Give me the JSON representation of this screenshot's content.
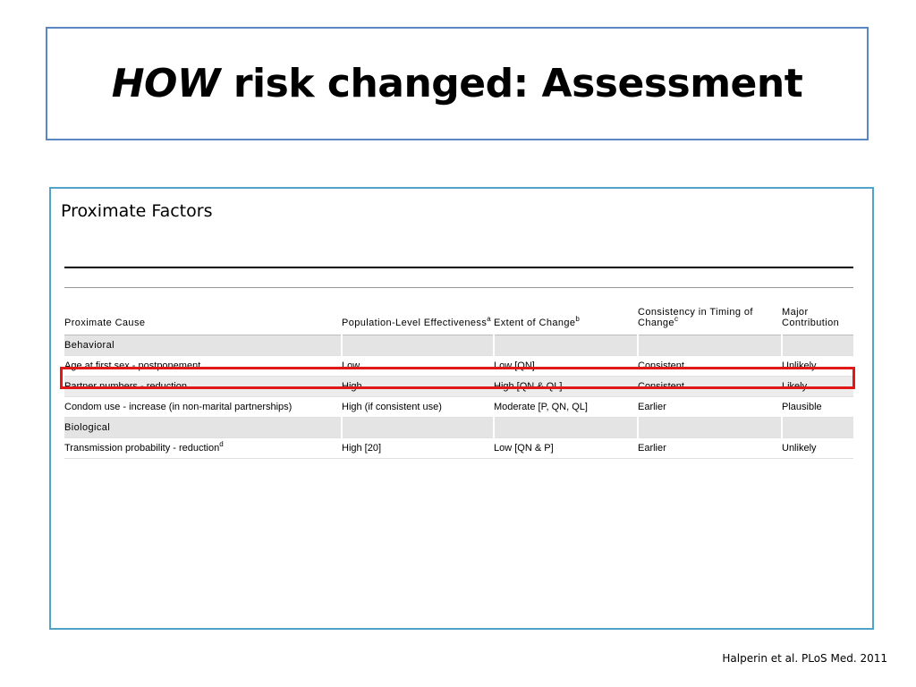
{
  "slide": {
    "title_italic": "HOW",
    "title_rest": " risk changed: Assessment",
    "subheading": "Proximate Factors",
    "citation": "Halperin et al. PLoS Med. 2011"
  },
  "table": {
    "headers": [
      {
        "text": "Proximate Cause",
        "sup": ""
      },
      {
        "text": "Population-Level Effectiveness",
        "sup": "a"
      },
      {
        "text": "Extent of Change",
        "sup": "b"
      },
      {
        "text": "Consistency in Timing of Change",
        "sup": "c"
      },
      {
        "text": "Major Contribution",
        "sup": ""
      }
    ],
    "groups": [
      {
        "label": "Behavioral",
        "rows": [
          {
            "cause": "Age at first sex - postponement",
            "cause_sup": "",
            "effectiveness": "Low",
            "extent": "Low [QN]",
            "timing": "Consistent",
            "contribution": "Unlikely"
          },
          {
            "cause": "Partner numbers - reduction",
            "cause_sup": "",
            "effectiveness": "High",
            "extent": "High [QN & QL]",
            "timing": "Consistent",
            "contribution": "Likely"
          },
          {
            "cause": "Condom use - increase (in non-marital partnerships)",
            "cause_sup": "",
            "effectiveness": "High (if consistent use)",
            "extent": "Moderate [P, QN, QL]",
            "timing": "Earlier",
            "contribution": "Plausible"
          }
        ]
      },
      {
        "label": "Biological",
        "rows": [
          {
            "cause": "Transmission probability - reduction",
            "cause_sup": "d",
            "effectiveness": "High [20]",
            "extent": "Low [QN & P]",
            "timing": "Earlier",
            "contribution": "Unlikely"
          }
        ]
      }
    ]
  },
  "colors": {
    "title_border": "#5b86c2",
    "content_border": "#4ea3c6",
    "highlight": "#e01818",
    "group_row_bg": "#e4e4e4"
  }
}
